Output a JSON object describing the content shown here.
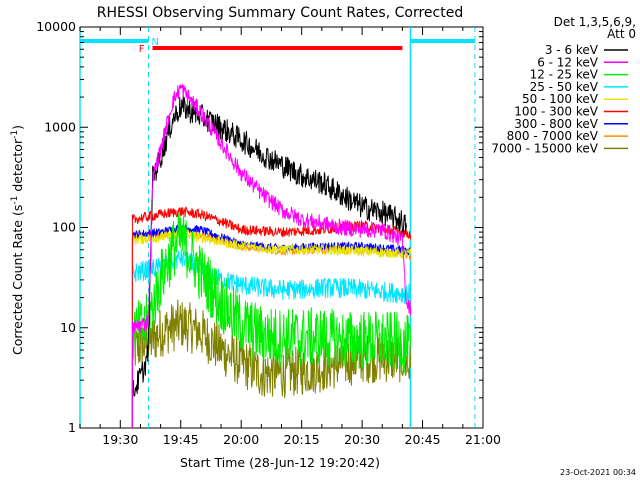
{
  "chart_data": {
    "type": "line",
    "title": "RHESSI Observing Summary Count Rates, Corrected",
    "ylabel_main": "Corrected Count Rate (s",
    "ylabel_sup1": "-1",
    "ylabel_mid": " detector",
    "ylabel_sup2": "-1",
    "ylabel_end": ")",
    "xlabel": "Start Time (28-Jun-12 19:20:42)",
    "timestamp": "23-Oct-2021 00:34",
    "yscale": "log",
    "ylim": [
      1,
      10000
    ],
    "xlim": [
      "19:20",
      "21:00"
    ],
    "x_ticks": [
      "19:30",
      "19:45",
      "20:00",
      "20:15",
      "20:30",
      "20:45",
      "21:00"
    ],
    "y_ticks": [
      "1",
      "10",
      "100",
      "1000",
      "10000"
    ],
    "legend_header": [
      "Det 1,3,5,6,9,",
      "Att 0"
    ],
    "legend_placement": "right",
    "flags": {
      "flare_label": "F",
      "flare_start": "19:37",
      "flare_end": "20:40",
      "night_label": "N",
      "night_bar_1": [
        "19:20",
        "19:37"
      ],
      "night_bar_2": [
        "20:42",
        "20:58"
      ],
      "flag_color": "#ff0000",
      "night_color": "#00e5ff"
    },
    "markers": {
      "solid_lines": [
        "19:20",
        "20:42"
      ],
      "dashed_lines": [
        "19:37",
        "20:58"
      ],
      "color": "#00e5ff"
    },
    "data_start": "19:33",
    "data_end": "20:42",
    "series": [
      {
        "name": "3 - 6 keV",
        "color": "#000000",
        "x": [
          "19:33",
          "19:36",
          "19:37",
          "19:38",
          "19:40",
          "19:43",
          "19:45",
          "19:50",
          "19:55",
          "20:00",
          "20:05",
          "20:10",
          "20:15",
          "20:20",
          "20:25",
          "20:30",
          "20:35",
          "20:40",
          "20:41"
        ],
        "y": [
          2.2,
          4,
          6,
          310,
          500,
          1200,
          1600,
          1300,
          1000,
          750,
          550,
          420,
          330,
          280,
          210,
          160,
          140,
          115,
          100
        ],
        "noise": 0.12
      },
      {
        "name": "6 - 12 keV",
        "color": "#ff00ff",
        "x": [
          "19:33",
          "19:36",
          "19:37",
          "19:38",
          "19:40",
          "19:43",
          "19:45",
          "19:50",
          "19:55",
          "20:00",
          "20:05",
          "20:10",
          "20:15",
          "20:20",
          "20:25",
          "20:30",
          "20:35",
          "20:40",
          "20:41",
          "20:42"
        ],
        "y": [
          10,
          11,
          12,
          300,
          600,
          1800,
          2500,
          1400,
          700,
          350,
          220,
          150,
          120,
          110,
          100,
          95,
          95,
          75,
          18,
          16
        ],
        "noise": 0.08
      },
      {
        "name": "12 - 25 keV",
        "color": "#00ee00",
        "x": [
          "19:33",
          "19:36",
          "19:37",
          "19:40",
          "19:43",
          "19:45",
          "19:50",
          "19:55",
          "20:00",
          "20:05",
          "20:10",
          "20:15",
          "20:20",
          "20:25",
          "20:30",
          "20:35",
          "20:40",
          "20:42"
        ],
        "y": [
          9,
          10,
          12,
          30,
          60,
          80,
          35,
          18,
          11,
          8.5,
          8,
          8,
          8,
          7.5,
          7.5,
          7.5,
          7,
          6.5
        ],
        "noise": 0.3
      },
      {
        "name": "25 - 50 keV",
        "color": "#00e5ff",
        "x": [
          "19:33",
          "19:37",
          "19:40",
          "19:45",
          "19:50",
          "19:55",
          "20:00",
          "20:05",
          "20:10",
          "20:15",
          "20:20",
          "20:25",
          "20:30",
          "20:35",
          "20:40",
          "20:42"
        ],
        "y": [
          35,
          38,
          40,
          50,
          38,
          30,
          27,
          25,
          24,
          24,
          25,
          25,
          24,
          23,
          22,
          22
        ],
        "noise": 0.1
      },
      {
        "name": "50 - 100 keV",
        "color": "#e6e600",
        "x": [
          "19:33",
          "19:40",
          "19:45",
          "19:50",
          "19:55",
          "20:00",
          "20:10",
          "20:20",
          "20:30",
          "20:40",
          "20:42"
        ],
        "y": [
          75,
          80,
          85,
          80,
          72,
          65,
          60,
          60,
          58,
          55,
          55
        ],
        "noise": 0.05
      },
      {
        "name": "100 - 300 keV",
        "color": "#ff0000",
        "x": [
          "19:33",
          "19:40",
          "19:45",
          "19:50",
          "19:55",
          "20:00",
          "20:10",
          "20:20",
          "20:30",
          "20:40",
          "20:42"
        ],
        "y": [
          120,
          135,
          145,
          135,
          115,
          95,
          90,
          95,
          105,
          90,
          85
        ],
        "noise": 0.05
      },
      {
        "name": "300 - 800 keV",
        "color": "#0000ff",
        "x": [
          "19:33",
          "19:40",
          "19:45",
          "19:50",
          "19:55",
          "20:00",
          "20:10",
          "20:20",
          "20:30",
          "20:40",
          "20:42"
        ],
        "y": [
          85,
          90,
          100,
          95,
          80,
          68,
          62,
          65,
          65,
          60,
          58
        ],
        "noise": 0.04
      },
      {
        "name": "800 - 7000 keV",
        "color": "#ff8800",
        "x": [
          "19:33",
          "19:40",
          "19:45",
          "19:50",
          "19:55",
          "20:00",
          "20:10",
          "20:20",
          "20:30",
          "20:40",
          "20:42"
        ],
        "y": [
          80,
          85,
          92,
          85,
          75,
          65,
          58,
          60,
          60,
          55,
          52
        ],
        "noise": 0.04
      },
      {
        "name": "7000 - 15000 keV",
        "color": "#808000",
        "x": [
          "19:33",
          "19:37",
          "19:40",
          "19:45",
          "19:50",
          "19:55",
          "20:00",
          "20:05",
          "20:10",
          "20:20",
          "20:30",
          "20:40",
          "20:42"
        ],
        "y": [
          6,
          7,
          9,
          11,
          9,
          6,
          4.5,
          3.5,
          3.5,
          4,
          5,
          5,
          4
        ],
        "noise": 0.25
      }
    ]
  }
}
